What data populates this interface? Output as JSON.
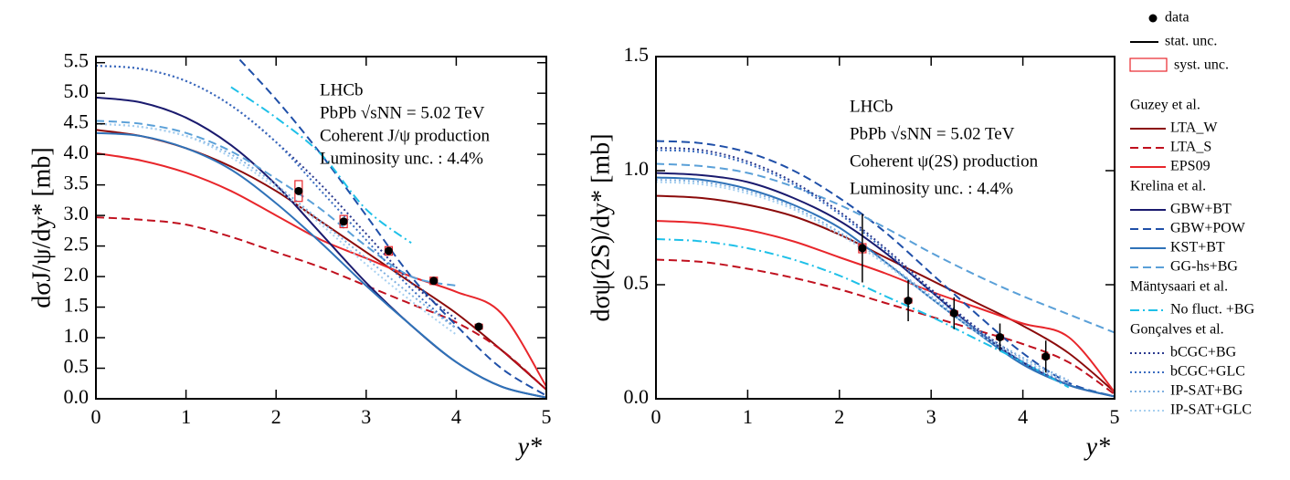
{
  "chart_data": [
    {
      "type": "line",
      "ylabel": "dσJ/ψ/dy* [mb]",
      "xlabel": "y*",
      "annotations": [
        "LHCb",
        "PbPb √sNN = 5.02 TeV",
        "Coherent J/ψ production",
        "Luminosity unc. : 4.4%"
      ],
      "xlim": [
        0,
        5
      ],
      "ylim": [
        0,
        5.6
      ],
      "xticks": [
        0,
        1,
        2,
        3,
        4,
        5
      ],
      "yticks": [
        {
          "value": 0,
          "label": "0.0"
        },
        {
          "value": 0.5,
          "label": "0.5"
        },
        {
          "value": 1,
          "label": "1.0"
        },
        {
          "value": 1.5,
          "label": "1.5"
        },
        {
          "value": 2,
          "label": "2.0"
        },
        {
          "value": 2.5,
          "label": "2.5"
        },
        {
          "value": 3,
          "label": "3.0"
        },
        {
          "value": 3.5,
          "label": "3.5"
        },
        {
          "value": 4,
          "label": "4.0"
        },
        {
          "value": 4.5,
          "label": "4.5"
        },
        {
          "value": 5,
          "label": "5.0"
        },
        {
          "value": 5.5,
          "label": "5.5"
        }
      ],
      "x": [
        0,
        0.5,
        1,
        1.5,
        2,
        2.5,
        3,
        3.5,
        4,
        4.5,
        5
      ],
      "data": {
        "name": "data",
        "stat_name": "stat. unc.",
        "syst_name": "syst. unc.",
        "color": "#000",
        "syst_color": "#e8262b",
        "x": [
          2.25,
          2.75,
          3.25,
          3.75,
          4.25
        ],
        "values": [
          3.4,
          2.9,
          2.42,
          1.93,
          1.18
        ],
        "stat_err": [
          0.06,
          0.05,
          0.04,
          0.04,
          0.03
        ],
        "syst_err": [
          0.17,
          0.1,
          0.07,
          0.06,
          0.04
        ]
      },
      "series": [
        {
          "name": "LTA_W",
          "group": "Guzey et al.",
          "color": "#8b0a0a",
          "dash": "solid",
          "values": [
            4.4,
            4.3,
            4.1,
            3.8,
            3.4,
            2.9,
            2.4,
            1.9,
            1.4,
            0.8,
            0.15
          ]
        },
        {
          "name": "LTA_S",
          "group": "Guzey et al.",
          "color": "#c0101e",
          "dash": "dashed",
          "values": [
            2.97,
            2.93,
            2.85,
            2.65,
            2.4,
            2.15,
            1.85,
            1.55,
            1.25,
            0.8,
            0.15
          ]
        },
        {
          "name": "EPS09",
          "group": "Guzey et al.",
          "color": "#e8262b",
          "dash": "solid",
          "values": [
            4.02,
            3.9,
            3.7,
            3.4,
            3.0,
            2.6,
            2.3,
            2.0,
            1.75,
            1.4,
            0.2
          ]
        },
        {
          "name": "GBW+BT",
          "group": "Krelina et al.",
          "color": "#1a1a6e",
          "dash": "solid",
          "values": [
            4.93,
            4.85,
            4.6,
            4.15,
            3.5,
            2.7,
            1.9,
            1.2,
            0.6,
            0.2,
            0.02
          ]
        },
        {
          "name": "GBW+POW",
          "group": "Krelina et al.",
          "color": "#1f4fa8",
          "dash": "dashed",
          "values": [
            null,
            null,
            null,
            5.7,
            4.9,
            4.0,
            3.0,
            2.0,
            1.2,
            0.5,
            0.05
          ]
        },
        {
          "name": "KST+BT",
          "group": "Krelina et al.",
          "color": "#2f72b8",
          "dash": "solid",
          "values": [
            4.35,
            4.3,
            4.1,
            3.75,
            3.2,
            2.55,
            1.85,
            1.2,
            0.6,
            0.2,
            0.02
          ]
        },
        {
          "name": "GG-hs+BG",
          "group": "Krelina et al.",
          "color": "#5aa0d8",
          "dash": "dashed",
          "values": [
            4.55,
            4.5,
            4.35,
            4.05,
            3.6,
            3.1,
            2.5,
            2.0,
            1.85,
            null,
            null
          ]
        },
        {
          "name": "No fluct. +BG",
          "group": "Mäntysaari et al.",
          "color": "#1ec0e8",
          "dash": "dashdot",
          "values": [
            null,
            null,
            null,
            5.1,
            4.6,
            4.0,
            3.1,
            2.55,
            null,
            null,
            null
          ]
        },
        {
          "name": "bCGC+BG",
          "group": "Gonçalves et al.",
          "color": "#2b3a8f",
          "dash": "dotted",
          "values": [
            5.45,
            5.4,
            5.2,
            4.8,
            4.2,
            3.5,
            2.7,
            1.9,
            1.3,
            null,
            null
          ]
        },
        {
          "name": "bCGC+GLC",
          "group": "Gonçalves et al.",
          "color": "#3a6cc0",
          "dash": "dotted",
          "values": [
            5.45,
            5.4,
            5.2,
            4.8,
            4.2,
            3.4,
            2.6,
            1.8,
            1.15,
            null,
            null
          ]
        },
        {
          "name": "IP-SAT+BG",
          "group": "Gonçalves et al.",
          "color": "#7fb0e0",
          "dash": "dotted",
          "values": [
            4.5,
            4.45,
            4.3,
            4.0,
            3.5,
            2.9,
            2.3,
            1.7,
            1.15,
            null,
            null
          ]
        },
        {
          "name": "IP-SAT+GLC",
          "group": "Gonçalves et al.",
          "color": "#a8d0f0",
          "dash": "dotted",
          "values": [
            4.5,
            4.45,
            4.3,
            3.95,
            3.45,
            2.85,
            2.2,
            1.6,
            1.05,
            null,
            null
          ]
        }
      ]
    },
    {
      "type": "line",
      "ylabel": "dσψ(2S)/dy* [mb]",
      "xlabel": "y*",
      "annotations": [
        "LHCb",
        "PbPb √sNN = 5.02 TeV",
        "Coherent ψ(2S) production",
        "Luminosity unc. : 4.4%"
      ],
      "xlim": [
        0,
        5
      ],
      "ylim": [
        0,
        1.5
      ],
      "xticks": [
        0,
        1,
        2,
        3,
        4,
        5
      ],
      "yticks": [
        {
          "value": 0,
          "label": "0.0"
        },
        {
          "value": 0.5,
          "label": "0.5"
        },
        {
          "value": 1,
          "label": "1.0"
        },
        {
          "value": 1.5,
          "label": "1.5"
        }
      ],
      "x": [
        0,
        0.5,
        1,
        1.5,
        2,
        2.5,
        3,
        3.5,
        4,
        4.5,
        5
      ],
      "data": {
        "name": "data",
        "color": "#000",
        "syst_color": "#e8262b",
        "x": [
          2.25,
          2.75,
          3.25,
          3.75,
          4.25
        ],
        "values": [
          0.66,
          0.43,
          0.375,
          0.27,
          0.185
        ],
        "stat_err": [
          0.15,
          0.09,
          0.07,
          0.06,
          0.07
        ],
        "syst_err": [
          0.02,
          0.01,
          0.01,
          0.01,
          0.01
        ]
      },
      "series": [
        {
          "name": "LTA_W",
          "color": "#8b0a0a",
          "dash": "solid",
          "values": [
            0.89,
            0.88,
            0.85,
            0.8,
            0.72,
            0.62,
            0.52,
            0.42,
            0.32,
            0.2,
            0.03
          ]
        },
        {
          "name": "LTA_S",
          "color": "#c0101e",
          "dash": "dashed",
          "values": [
            0.61,
            0.6,
            0.57,
            0.53,
            0.48,
            0.42,
            0.36,
            0.3,
            0.24,
            0.16,
            0.02
          ]
        },
        {
          "name": "EPS09",
          "color": "#e8262b",
          "dash": "solid",
          "values": [
            0.78,
            0.77,
            0.74,
            0.69,
            0.62,
            0.55,
            0.47,
            0.4,
            0.33,
            0.27,
            0.03
          ]
        },
        {
          "name": "GBW+BT",
          "color": "#1a1a6e",
          "dash": "solid",
          "values": [
            0.99,
            0.98,
            0.95,
            0.88,
            0.78,
            0.64,
            0.47,
            0.3,
            0.16,
            0.06,
            0.01
          ]
        },
        {
          "name": "GBW+POW",
          "color": "#1f4fa8",
          "dash": "dashed",
          "values": [
            1.13,
            1.12,
            1.08,
            1.0,
            0.88,
            0.73,
            0.55,
            0.37,
            0.2,
            0.07,
            0.01
          ]
        },
        {
          "name": "KST+BT",
          "color": "#2f72b8",
          "dash": "solid",
          "values": [
            0.97,
            0.96,
            0.92,
            0.85,
            0.75,
            0.6,
            0.44,
            0.29,
            0.15,
            0.06,
            0.01
          ]
        },
        {
          "name": "GG-hs+BG",
          "color": "#5aa0d8",
          "dash": "dashed",
          "values": [
            1.03,
            1.02,
            0.99,
            0.93,
            0.85,
            0.75,
            0.64,
            0.54,
            0.45,
            0.37,
            0.29
          ]
        },
        {
          "name": "No fluct. +BG",
          "color": "#1ec0e8",
          "dash": "dashdot",
          "values": [
            0.7,
            0.69,
            0.66,
            0.61,
            0.54,
            0.45,
            0.36,
            0.26,
            0.16,
            0.05,
            null
          ]
        },
        {
          "name": "bCGC+BG",
          "color": "#2b3a8f",
          "dash": "dotted",
          "values": [
            1.1,
            1.09,
            1.04,
            0.95,
            0.82,
            0.66,
            0.48,
            0.31,
            0.17,
            0.07,
            null
          ]
        },
        {
          "name": "bCGC+GLC",
          "color": "#3a6cc0",
          "dash": "dotted",
          "values": [
            1.09,
            1.08,
            1.03,
            0.94,
            0.81,
            0.65,
            0.47,
            0.3,
            0.16,
            0.06,
            null
          ]
        },
        {
          "name": "IP-SAT+BG",
          "color": "#7fb0e0",
          "dash": "dotted",
          "values": [
            0.96,
            0.95,
            0.91,
            0.84,
            0.73,
            0.6,
            0.45,
            0.3,
            0.18,
            0.08,
            null
          ]
        },
        {
          "name": "IP-SAT+GLC",
          "color": "#a8d0f0",
          "dash": "dotted",
          "values": [
            0.95,
            0.94,
            0.9,
            0.83,
            0.72,
            0.59,
            0.44,
            0.29,
            0.17,
            0.07,
            null
          ]
        }
      ]
    }
  ]
}
